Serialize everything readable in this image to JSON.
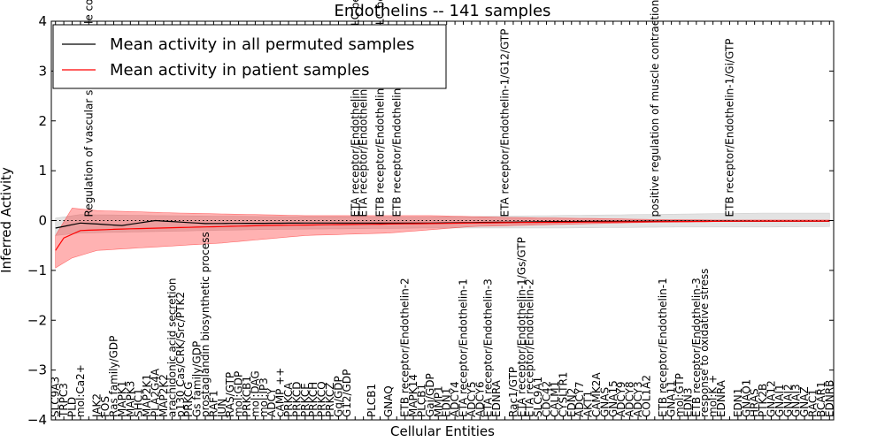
{
  "chart_data": {
    "type": "line",
    "title": "Endothelins -- 141 samples",
    "xlabel": "Cellular Entities",
    "ylabel": "Inferred Activity",
    "ylim": [
      -4,
      4
    ],
    "yticks": [
      "−4",
      "−3",
      "−2",
      "−1",
      "0",
      "1",
      "2",
      "3",
      "4"
    ],
    "legend": {
      "placement": "top-left",
      "entries": [
        {
          "label": "Mean activity in all permuted samples",
          "color": "#000000"
        },
        {
          "label": "Mean activity in patient samples",
          "color": "#ff0000"
        }
      ]
    },
    "colors": {
      "permuted_line": "#000000",
      "patient_line": "#ff0000",
      "permuted_band": "#b0b0b0",
      "patient_band": "#ff0000",
      "zero_line": "#000000"
    },
    "categories": [
      "SLC9A3",
      "TRPC3",
      "PLD",
      "mol:Ca2+",
      "Regulation of vascular smooth muscle contraction",
      "JAK2",
      "FOS",
      "Ras family/GDP",
      "MAPK1",
      "MAPK3",
      "SHC1",
      "MAP2K1",
      "PLA2G4A",
      "MAP2K2",
      "arachidonic acid secretion",
      "p130 Cas/CRK/Src/PTK2",
      "PRKCG",
      "Gs family/GDP",
      "prostaglandin biosynthetic process",
      "RAF1",
      "JUN",
      "RAS/GTP",
      "mol:GDP",
      "PRKCB1",
      "mol:DAG",
      "mol:IP3",
      "ADCY",
      "cAMP ++",
      "PRKCA",
      "PRKCD",
      "PRKCE",
      "PRKCH",
      "PRKCQ",
      "PRKCZ",
      "Gq/GDP",
      "G12/GDP",
      "ETA receptor/Endothelin-1/Gq/GTP/PLC beta",
      "ETA receptor/Endothelin-1/Gq/GTP",
      "PLCB1",
      "ETB receptor/Endothelin-1/Gq/GTP/PLC beta",
      "GNAQ",
      "ETB receptor/Endothelin-1/Gq/GTP",
      "ETB receptor/Endothelin-2",
      "MAPK14",
      "PLCB1",
      "Gai/GDP",
      "MMP1",
      "EDN1",
      "ADCY4",
      "ETA receptor/Endothelin-1",
      "ADCY5",
      "ADCY6",
      "ETA receptor/Endothelin-3",
      "EDNRA",
      "ETA receptor/Endothelin-1/G12/GTP",
      "Rac1/GTP",
      "ETA receptor/Endothelin-1/Gs/GTP",
      "ETA receptor/Endothelin-2",
      "SLC9A1",
      "CDC42",
      "CALM1",
      "CYSLTR1",
      "EDN2",
      "ADCY7",
      "AKT1",
      "CAMK2A",
      "GNAS",
      "GNA15",
      "ADCY9",
      "ADCY8",
      "ADCY3",
      "COL1A2",
      "positive regulation of muscle contraction",
      "ETB receptor/Endothelin-1",
      "GNA11",
      "mol:GTP",
      "EDN3",
      "ETB receptor/Endothelin-3",
      "response to oxidative stress",
      "mol:K +",
      "EDNRA",
      "ETB receptor/Endothelin-1/Gi/GTP",
      "EDN1",
      "GNAO1",
      "HRAS",
      "PTK2B",
      "GNA12",
      "GNAI1",
      "GNAI2",
      "GNAI3",
      "GNAZ",
      "RAC1",
      "BCAR1",
      "EDNRB"
    ],
    "label_above": [
      "Regulation of vascular smooth muscle contraction",
      "ETA receptor/Endothelin-1/Gq/GTP/PLC beta",
      "ETA receptor/Endothelin-1/Gq/GTP",
      "ETB receptor/Endothelin-1/Gq/GTP/PLC beta",
      "ETB receptor/Endothelin-1/Gq/GTP",
      "ETA receptor/Endothelin-1/G12/GTP",
      "positive regulation of muscle contraction",
      "ETB receptor/Endothelin-1/Gi/GTP"
    ],
    "series": [
      {
        "name": "Mean activity in all permuted samples",
        "anchors": [
          [
            0,
            -0.15
          ],
          [
            3,
            -0.05
          ],
          [
            8,
            -0.1
          ],
          [
            12,
            0.0
          ],
          [
            18,
            -0.06
          ],
          [
            30,
            -0.05
          ],
          [
            45,
            -0.05
          ],
          [
            60,
            -0.02
          ],
          [
            75,
            -0.01
          ],
          [
            90,
            -0.01
          ],
          [
            94,
            -0.01
          ]
        ]
      },
      {
        "name": "Mean activity in patient samples",
        "anchors": [
          [
            0,
            -0.6
          ],
          [
            1,
            -0.35
          ],
          [
            3,
            -0.2
          ],
          [
            8,
            -0.17
          ],
          [
            15,
            -0.14
          ],
          [
            25,
            -0.1
          ],
          [
            35,
            -0.08
          ],
          [
            45,
            -0.06
          ],
          [
            55,
            -0.04
          ],
          [
            65,
            -0.03
          ],
          [
            75,
            -0.02
          ],
          [
            85,
            -0.01
          ],
          [
            94,
            -0.01
          ]
        ]
      }
    ],
    "bands": [
      {
        "name": "permuted",
        "upper": [
          [
            0,
            0.05
          ],
          [
            3,
            0.12
          ],
          [
            12,
            0.1
          ],
          [
            25,
            0.08
          ],
          [
            45,
            0.07
          ],
          [
            60,
            0.1
          ],
          [
            75,
            0.13
          ],
          [
            85,
            0.15
          ],
          [
            94,
            0.15
          ]
        ],
        "lower": [
          [
            0,
            -0.3
          ],
          [
            3,
            -0.25
          ],
          [
            12,
            -0.22
          ],
          [
            25,
            -0.18
          ],
          [
            45,
            -0.15
          ],
          [
            60,
            -0.15
          ],
          [
            75,
            -0.13
          ],
          [
            85,
            -0.13
          ],
          [
            94,
            -0.12
          ]
        ]
      },
      {
        "name": "patient",
        "upper": [
          [
            0,
            -0.3
          ],
          [
            2,
            0.25
          ],
          [
            5,
            0.2
          ],
          [
            15,
            0.15
          ],
          [
            30,
            0.1
          ],
          [
            45,
            0.1
          ],
          [
            55,
            0.06
          ],
          [
            65,
            0.04
          ],
          [
            72,
            0.02
          ],
          [
            80,
            0.01
          ],
          [
            94,
            0.01
          ]
        ],
        "lower": [
          [
            0,
            -0.95
          ],
          [
            2,
            -0.75
          ],
          [
            5,
            -0.6
          ],
          [
            10,
            -0.55
          ],
          [
            20,
            -0.45
          ],
          [
            30,
            -0.3
          ],
          [
            40,
            -0.25
          ],
          [
            50,
            -0.12
          ],
          [
            60,
            -0.08
          ],
          [
            70,
            -0.04
          ],
          [
            80,
            -0.02
          ],
          [
            94,
            -0.02
          ]
        ]
      }
    ]
  }
}
